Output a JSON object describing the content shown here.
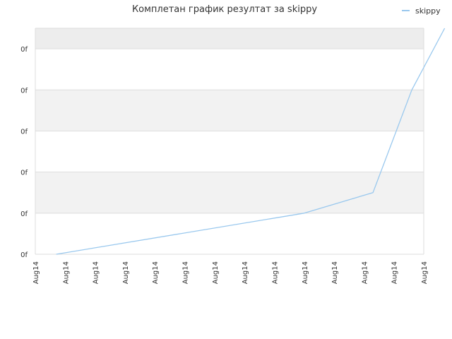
{
  "chart_data": {
    "type": "line",
    "title": "Комплетан график резултат за skippy",
    "xlabel": "",
    "ylabel": "",
    "x_tick_labels": [
      "Aug14",
      "Aug14",
      "Aug14",
      "Aug14",
      "Aug14",
      "Aug14",
      "Aug14",
      "Aug14",
      "Aug14",
      "Aug14",
      "Aug14",
      "Aug14",
      "Aug14",
      "Aug14"
    ],
    "y_tick_labels": [
      "0f",
      "0f",
      "0f",
      "0f",
      "0f",
      "0f"
    ],
    "ylim": [
      0,
      5.5
    ],
    "grid": true,
    "legend_position": "top-right",
    "series": [
      {
        "name": "skippy",
        "color": "#99c8ee",
        "x": [
          0.7,
          9,
          11.3,
          12.6,
          13.7
        ],
        "values": [
          0,
          1,
          1.5,
          4,
          5.5
        ]
      }
    ]
  }
}
